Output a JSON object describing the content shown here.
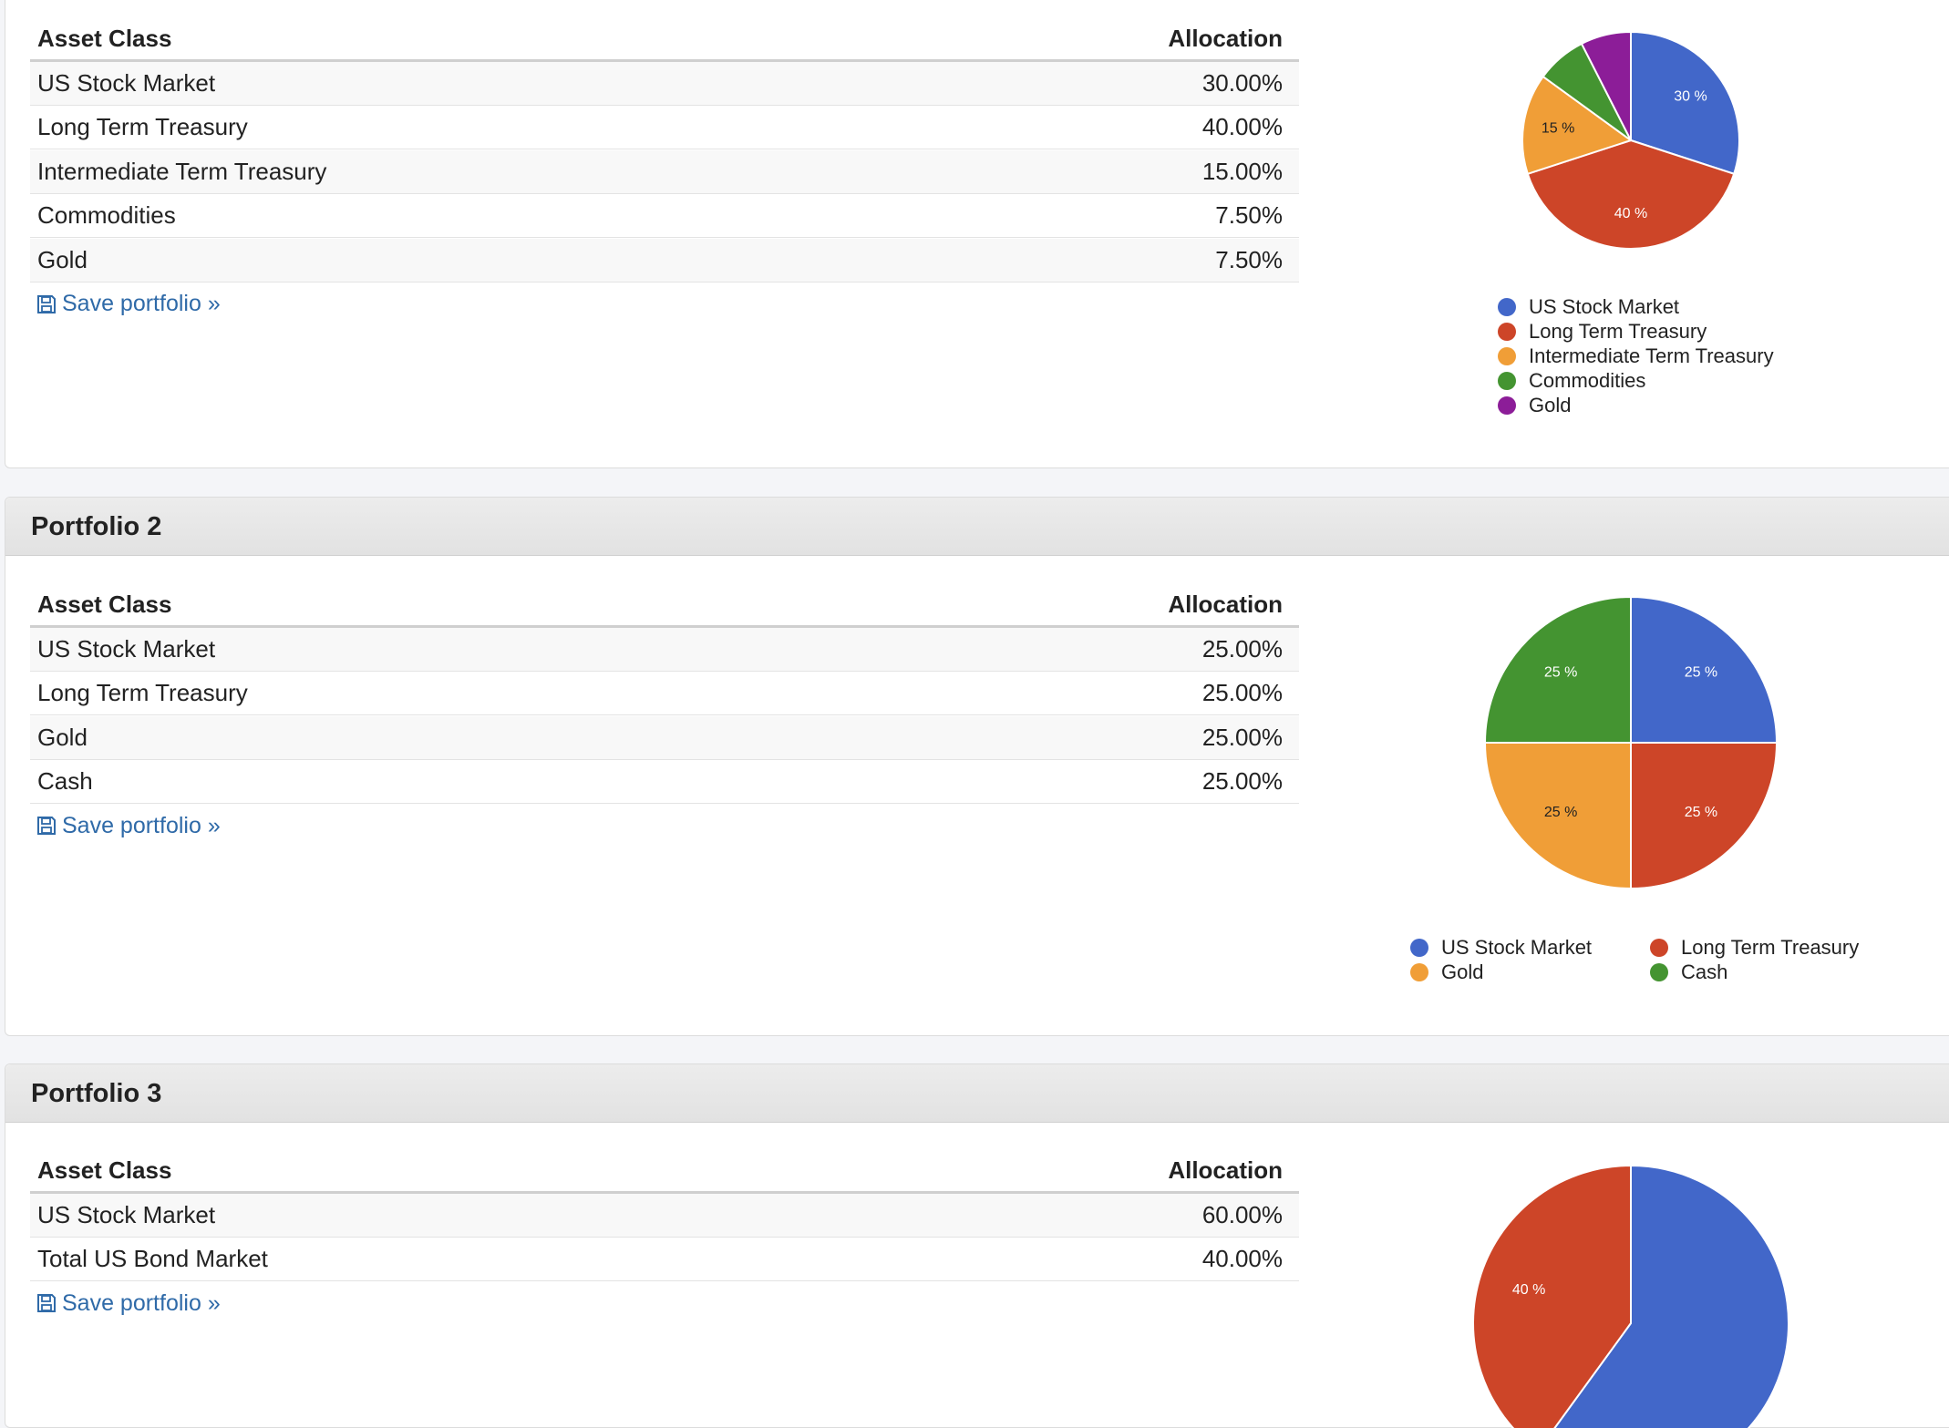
{
  "portfolios": [
    {
      "table": {
        "headers": [
          "Asset Class",
          "Allocation"
        ],
        "rows": [
          [
            "US Stock Market",
            "30.00%"
          ],
          [
            "Long Term Treasury",
            "40.00%"
          ],
          [
            "Intermediate Term Treasury",
            "15.00%"
          ],
          [
            "Commodities",
            "7.50%"
          ],
          [
            "Gold",
            "7.50%"
          ]
        ]
      },
      "save_link": "Save portfolio »",
      "chart_data": {
        "type": "pie",
        "categories": [
          "US Stock Market",
          "Long Term Treasury",
          "Intermediate Term Treasury",
          "Commodities",
          "Gold"
        ],
        "values": [
          30,
          40,
          15,
          7.5,
          7.5
        ],
        "value_labels": [
          "30 %",
          "40 %",
          "15 %",
          null,
          null
        ],
        "colors": [
          "#4267c9",
          "#cd4528",
          "#f09e37",
          "#449431",
          "#8c1d98"
        ]
      }
    },
    {
      "title": "Portfolio 2",
      "table": {
        "headers": [
          "Asset Class",
          "Allocation"
        ],
        "rows": [
          [
            "US Stock Market",
            "25.00%"
          ],
          [
            "Long Term Treasury",
            "25.00%"
          ],
          [
            "Gold",
            "25.00%"
          ],
          [
            "Cash",
            "25.00%"
          ]
        ]
      },
      "save_link": "Save portfolio »",
      "chart_data": {
        "type": "pie",
        "categories": [
          "US Stock Market",
          "Long Term Treasury",
          "Gold",
          "Cash"
        ],
        "values": [
          25,
          25,
          25,
          25
        ],
        "value_labels": [
          "25 %",
          "25 %",
          "25 %",
          "25 %"
        ],
        "colors": [
          "#4267c9",
          "#cd4528",
          "#f09e37",
          "#449431"
        ]
      }
    },
    {
      "title": "Portfolio 3",
      "table": {
        "headers": [
          "Asset Class",
          "Allocation"
        ],
        "rows": [
          [
            "US Stock Market",
            "60.00%"
          ],
          [
            "Total US Bond Market",
            "40.00%"
          ]
        ]
      },
      "save_link": "Save portfolio »",
      "chart_data": {
        "type": "pie",
        "values": [
          60,
          40
        ],
        "value_labels": [
          null,
          "40 %"
        ],
        "colors": [
          "#4267c9",
          "#cd4528"
        ]
      }
    }
  ]
}
